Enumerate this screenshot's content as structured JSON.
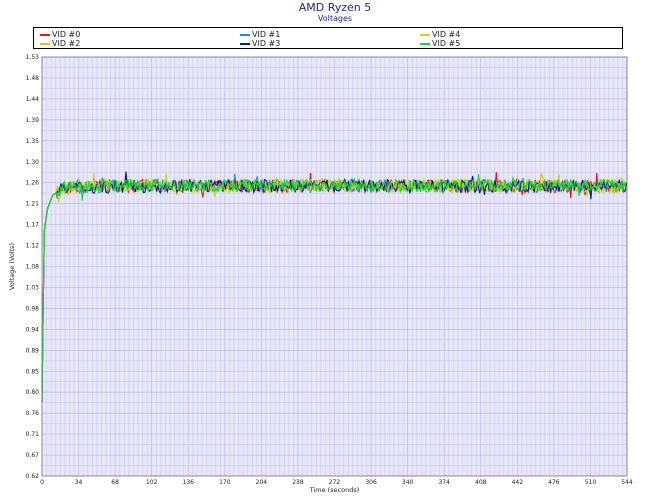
{
  "chart_data": {
    "type": "line",
    "title": "AMD Ryzen 5",
    "subtitle": "Voltages",
    "xlabel": "Time (seconds)",
    "ylabel": "Voltage (Volts)",
    "xlim": [
      0,
      544
    ],
    "ylim": [
      0.62,
      1.53
    ],
    "xticks": [
      0,
      34,
      68,
      102,
      136,
      170,
      204,
      238,
      272,
      306,
      340,
      374,
      408,
      442,
      476,
      510,
      544
    ],
    "yticks": [
      "1.53",
      "1.48",
      "1.44",
      "1.39",
      "1.35",
      "1.30",
      "1.26",
      "1.21",
      "1.17",
      "1.12",
      "1.08",
      "1.03",
      "0.98",
      "0.94",
      "0.89",
      "0.85",
      "0.80",
      "0.76",
      "0.71",
      "0.67",
      "0.62"
    ],
    "grid": true,
    "legend_position": "top",
    "series": [
      {
        "name": "VID #0",
        "color": "#e8151b",
        "values": [
          [
            0,
            0.78
          ],
          [
            2,
            1.15
          ],
          [
            5,
            1.2
          ],
          [
            10,
            1.23
          ],
          [
            20,
            1.245
          ],
          [
            60,
            1.25
          ],
          [
            150,
            1.25
          ],
          [
            300,
            1.25
          ],
          [
            450,
            1.25
          ],
          [
            544,
            1.25
          ]
        ]
      },
      {
        "name": "VID #1",
        "color": "#1c8fd8",
        "values": [
          [
            0,
            0.78
          ],
          [
            2,
            1.15
          ],
          [
            5,
            1.2
          ],
          [
            10,
            1.23
          ],
          [
            20,
            1.245
          ],
          [
            60,
            1.25
          ],
          [
            150,
            1.25
          ],
          [
            300,
            1.25
          ],
          [
            450,
            1.25
          ],
          [
            544,
            1.25
          ]
        ]
      },
      {
        "name": "VID #4",
        "color": "#b8e21a",
        "values": [
          [
            0,
            0.78
          ],
          [
            2,
            1.15
          ],
          [
            5,
            1.2
          ],
          [
            10,
            1.23
          ],
          [
            20,
            1.245
          ],
          [
            60,
            1.252
          ],
          [
            150,
            1.25
          ],
          [
            300,
            1.252
          ],
          [
            450,
            1.25
          ],
          [
            544,
            1.25
          ]
        ]
      },
      {
        "name": "VID #2",
        "color": "#e0c21c",
        "values": [
          [
            0,
            0.78
          ],
          [
            2,
            1.15
          ],
          [
            5,
            1.2
          ],
          [
            10,
            1.23
          ],
          [
            20,
            1.245
          ],
          [
            60,
            1.25
          ],
          [
            150,
            1.25
          ],
          [
            300,
            1.25
          ],
          [
            450,
            1.25
          ],
          [
            544,
            1.25
          ]
        ]
      },
      {
        "name": "VID #3",
        "color": "#0a1d8c",
        "values": [
          [
            0,
            0.78
          ],
          [
            2,
            1.15
          ],
          [
            5,
            1.2
          ],
          [
            10,
            1.23
          ],
          [
            20,
            1.245
          ],
          [
            60,
            1.248
          ],
          [
            150,
            1.25
          ],
          [
            300,
            1.25
          ],
          [
            450,
            1.248
          ],
          [
            544,
            1.25
          ]
        ]
      },
      {
        "name": "VID #5",
        "color": "#1fd43a",
        "values": [
          [
            0,
            0.78
          ],
          [
            2,
            1.15
          ],
          [
            5,
            1.2
          ],
          [
            10,
            1.23
          ],
          [
            20,
            1.245
          ],
          [
            60,
            1.252
          ],
          [
            150,
            1.25
          ],
          [
            300,
            1.25
          ],
          [
            450,
            1.252
          ],
          [
            544,
            1.25
          ]
        ]
      }
    ]
  }
}
